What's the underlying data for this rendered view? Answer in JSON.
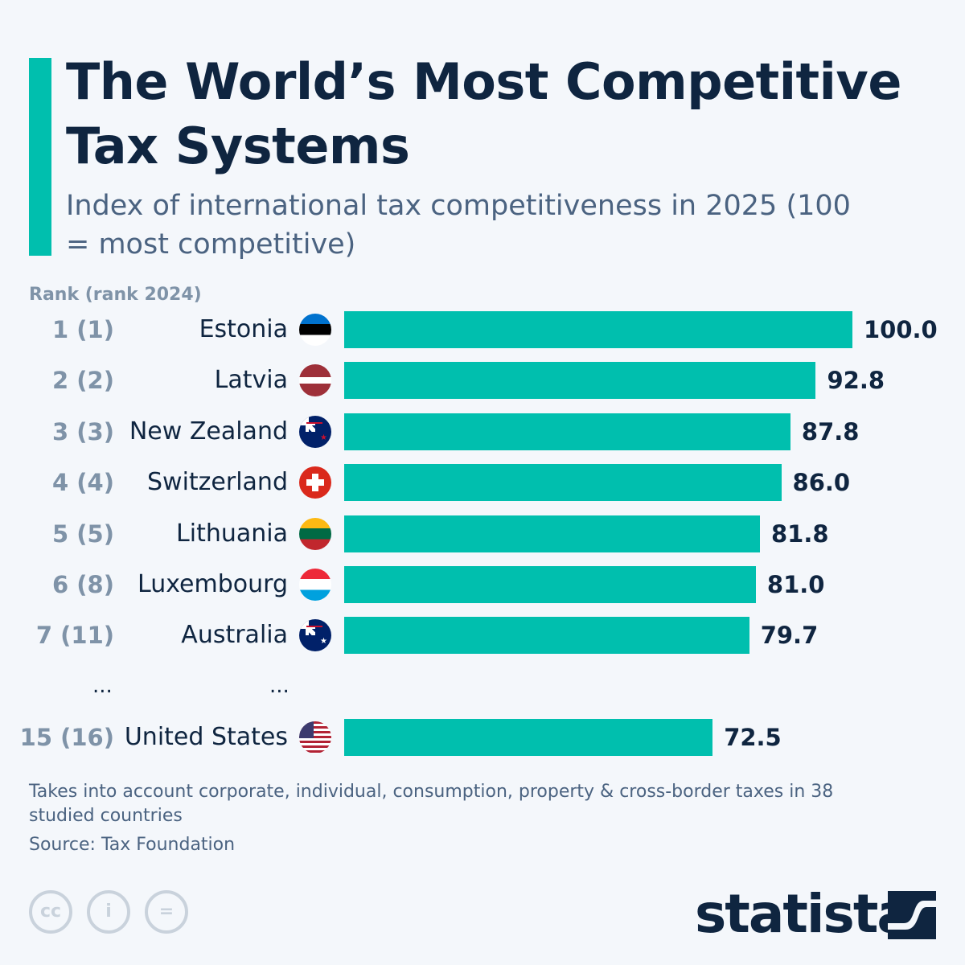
{
  "title": "The World’s Most Competitive Tax Systems",
  "subtitle": "Index of international tax competitiveness in 2025 (100 = most competitive)",
  "rank_header": "Rank (rank 2024)",
  "ellipsis": "...",
  "note": "Takes into account corporate, individual, consumption, property & cross-border taxes in 38 studied countries",
  "source": "Source: Tax Foundation",
  "license_icons": [
    "cc",
    "by",
    "nd"
  ],
  "license_labels": {
    "cc": "cc",
    "by": "i",
    "nd": "="
  },
  "brand": "statista",
  "colors": {
    "bar": "#00bfae",
    "title": "#0f2540",
    "rank": "#7f93a8"
  },
  "chart_data": {
    "type": "bar",
    "orientation": "horizontal",
    "xlim": [
      0,
      100
    ],
    "grid": false,
    "categories": [
      "Estonia",
      "Latvia",
      "New Zealand",
      "Switzerland",
      "Lithuania",
      "Luxembourg",
      "Australia",
      "United States"
    ],
    "ranks": [
      "1 (1)",
      "2 (2)",
      "3 (3)",
      "4 (4)",
      "5 (5)",
      "6 (8)",
      "7 (11)",
      "15 (16)"
    ],
    "values": [
      100.0,
      92.8,
      87.8,
      86.0,
      81.8,
      81.0,
      79.7,
      72.5
    ],
    "value_labels": [
      "100.0",
      "92.8",
      "87.8",
      "86.0",
      "81.8",
      "81.0",
      "79.7",
      "72.5"
    ],
    "flags": [
      "estonia",
      "latvia",
      "new-zealand",
      "switzerland",
      "lithuania",
      "luxembourg",
      "australia",
      "united-states"
    ]
  }
}
